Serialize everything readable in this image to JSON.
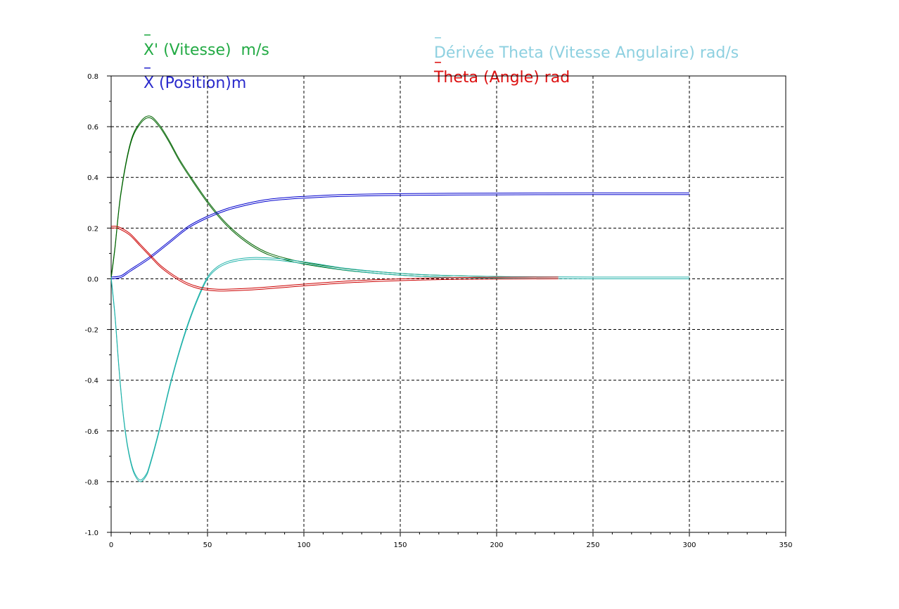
{
  "legend": [
    {
      "id": "xdot",
      "marker": "–",
      "label": "X' (Vitesse)  m/s",
      "color": "#22aa44"
    },
    {
      "id": "x",
      "marker": "–",
      "label": "X (Position)m",
      "color": "#2a2acc"
    },
    {
      "id": "thetadot",
      "marker": "–",
      "label": "Dérivée Theta (Vitesse Angulaire) rad/s",
      "color": "#8dd0e0"
    },
    {
      "id": "theta",
      "marker": "–",
      "label": "Theta (Angle) rad",
      "color": "#dd1111"
    }
  ],
  "chart_data": {
    "type": "line",
    "xlim": [
      0,
      350
    ],
    "ylim": [
      -1.0,
      0.8
    ],
    "grid": true,
    "legend_position": "top",
    "x_ticks": [
      "0",
      "50",
      "100",
      "150",
      "200",
      "250",
      "300",
      "350"
    ],
    "y_ticks": [
      "0.8",
      "0.6",
      "0.4",
      "0.2",
      "0.0",
      "-0.2",
      "-0.4",
      "-0.6",
      "-0.8",
      "-1.0"
    ],
    "series": [
      {
        "name": "X' (Vitesse)  m/s",
        "color": "#006400",
        "x": [
          0,
          2,
          5,
          10,
          15,
          20,
          25,
          30,
          35,
          40,
          50,
          60,
          70,
          80,
          90,
          100,
          120,
          140,
          160,
          180,
          200,
          207
        ],
        "y": [
          0,
          0.12,
          0.33,
          0.53,
          0.61,
          0.635,
          0.6,
          0.54,
          0.47,
          0.41,
          0.3,
          0.21,
          0.145,
          0.1,
          0.075,
          0.058,
          0.035,
          0.02,
          0.01,
          0.005,
          0.002,
          0.001
        ]
      },
      {
        "name": "X (Position)m",
        "color": "#0000cd",
        "x": [
          0,
          5,
          10,
          20,
          30,
          40,
          50,
          60,
          70,
          80,
          90,
          100,
          120,
          150,
          200,
          250,
          300
        ],
        "y": [
          0,
          0.005,
          0.03,
          0.08,
          0.14,
          0.2,
          0.24,
          0.27,
          0.29,
          0.305,
          0.313,
          0.318,
          0.325,
          0.329,
          0.331,
          0.332,
          0.332
        ]
      },
      {
        "name": "Dérivée Theta (Vitesse Angulaire) rad/s",
        "color": "#20b2aa",
        "x": [
          0,
          2,
          4,
          6,
          8,
          10,
          12,
          15,
          18,
          20,
          25,
          30,
          35,
          40,
          45,
          50,
          55,
          60,
          65,
          70,
          75,
          80,
          85,
          90,
          100,
          110,
          120,
          140,
          160,
          180,
          200,
          250,
          300
        ],
        "y": [
          0,
          -0.15,
          -0.35,
          -0.52,
          -0.64,
          -0.72,
          -0.77,
          -0.8,
          -0.78,
          -0.74,
          -0.6,
          -0.44,
          -0.3,
          -0.18,
          -0.08,
          0.0,
          0.04,
          0.06,
          0.07,
          0.075,
          0.077,
          0.076,
          0.074,
          0.07,
          0.06,
          0.048,
          0.036,
          0.02,
          0.01,
          0.005,
          0.002,
          0.0,
          0.0
        ]
      },
      {
        "name": "Theta (Angle) rad",
        "color": "#cc0000",
        "x": [
          0,
          3,
          6,
          10,
          15,
          20,
          25,
          30,
          35,
          40,
          45,
          50,
          55,
          60,
          70,
          80,
          90,
          100,
          120,
          140,
          160,
          180,
          200,
          232
        ],
        "y": [
          0.2,
          0.2,
          0.19,
          0.17,
          0.13,
          0.09,
          0.05,
          0.02,
          -0.005,
          -0.025,
          -0.038,
          -0.045,
          -0.048,
          -0.048,
          -0.045,
          -0.04,
          -0.034,
          -0.028,
          -0.017,
          -0.01,
          -0.005,
          -0.002,
          -0.001,
          0.0
        ]
      }
    ]
  }
}
